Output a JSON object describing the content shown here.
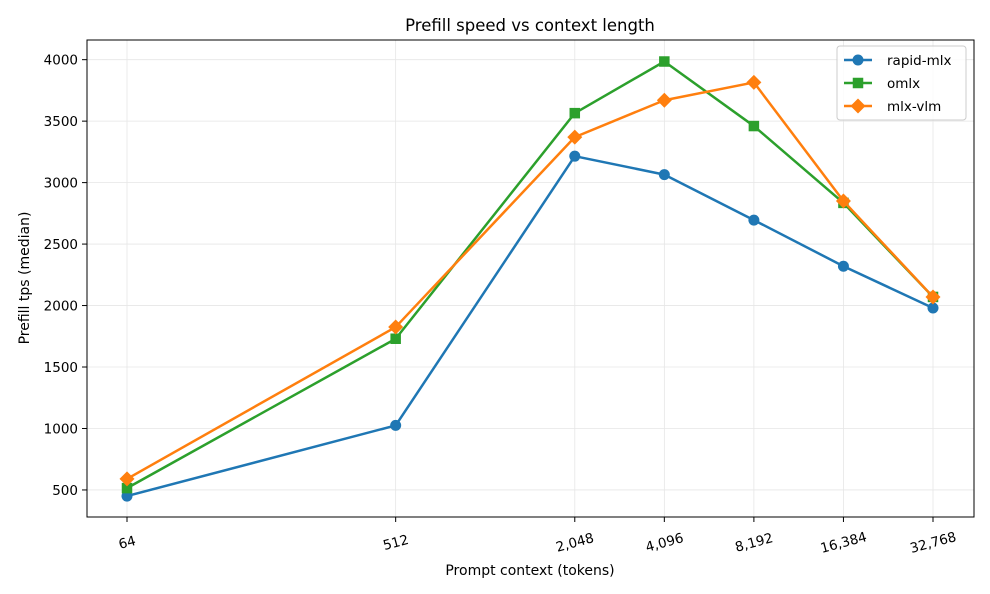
{
  "chart_data": {
    "type": "line",
    "title": "Prefill speed vs context length",
    "xlabel": "Prompt context (tokens)",
    "ylabel": "Prefill tps (median)",
    "x_scale": "log2",
    "x": [
      64,
      512,
      2048,
      4096,
      8192,
      16384,
      32768
    ],
    "x_tick_labels": [
      "64",
      "512",
      "2,048",
      "4,096",
      "8,192",
      "16,384",
      "32,768"
    ],
    "y_ticks": [
      500,
      1000,
      1500,
      2000,
      2500,
      3000,
      3500,
      4000
    ],
    "y_tick_labels": [
      "500",
      "1000",
      "1500",
      "2000",
      "2500",
      "3000",
      "3500",
      "4000"
    ],
    "ylim": [
      280,
      4160
    ],
    "grid": true,
    "legend_position": "top-right",
    "series": [
      {
        "name": "rapid-mlx",
        "color": "#1f77b4",
        "marker": "circle",
        "values": [
          450,
          1025,
          3215,
          3065,
          2695,
          2320,
          1980
        ]
      },
      {
        "name": "omlx",
        "color": "#2ca02c",
        "marker": "square",
        "values": [
          515,
          1730,
          3565,
          3985,
          3460,
          2835,
          2070
        ]
      },
      {
        "name": "mlx-vlm",
        "color": "#ff7f0e",
        "marker": "diamond",
        "values": [
          590,
          1825,
          3370,
          3670,
          3815,
          2850,
          2070
        ]
      }
    ]
  }
}
